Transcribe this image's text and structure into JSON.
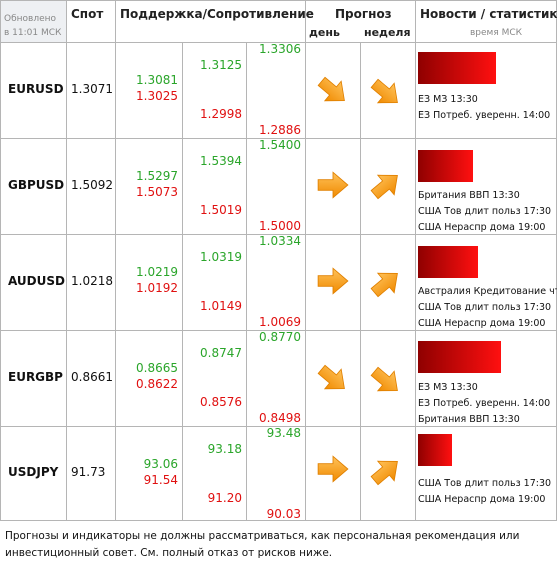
{
  "header": {
    "updated": "Обновлено в 11:01 МСК",
    "spot": "Спот",
    "levels": "Поддержка/Сопротивление",
    "forecast": "Прогноз",
    "day": "день",
    "week": "неделя",
    "news": "Новости / статистика",
    "time": "время МСК"
  },
  "rows": [
    {
      "pair": "EURUSD",
      "spot": "1.3071",
      "resistance": [
        "1.3081",
        "1.3125",
        "1.3306"
      ],
      "support": [
        "1.3025",
        "1.2998",
        "1.2886"
      ],
      "news": [
        "ЕЗ МЗ 13:30",
        "ЕЗ Потреб. уверенн. 14:00"
      ]
    },
    {
      "pair": "GBPUSD",
      "spot": "1.5092",
      "resistance": [
        "1.5297",
        "1.5394",
        "1.5400"
      ],
      "support": [
        "1.5073",
        "1.5019",
        "1.5000"
      ],
      "news": [
        "Британия ВВП 13:30",
        "США Тов длит польз 17:30",
        "США Нераспр дома 19:00"
      ]
    },
    {
      "pair": "AUDUSD",
      "spot": "1.0218",
      "resistance": [
        "1.0219",
        "1.0319",
        "1.0334"
      ],
      "support": [
        "1.0192",
        "1.0149",
        "1.0069"
      ],
      "news": [
        "Австралия Кредитование чт.",
        "США Тов длит польз 17:30",
        "США Нераспр дома 19:00"
      ]
    },
    {
      "pair": "EURGBP",
      "spot": "0.8661",
      "resistance": [
        "0.8665",
        "0.8747",
        "0.8770"
      ],
      "support": [
        "0.8622",
        "0.8576",
        "0.8498"
      ],
      "news": [
        "ЕЗ МЗ 13:30",
        "ЕЗ Потреб. уверенн. 14:00",
        "Британия ВВП 13:30"
      ]
    },
    {
      "pair": "USDJPY",
      "spot": "91.73",
      "resistance": [
        "93.06",
        "93.18",
        "93.48"
      ],
      "support": [
        "91.54",
        "91.20",
        "90.03"
      ],
      "news": [
        "США Тов длит польз 17:30",
        "США Нераспр дома 19:00"
      ]
    }
  ],
  "footer": "Прогнозы и индикаторы не должны рассматриваться, как персональная рекомендация или инвестиционный совет. См. полный отказ от рисков ниже."
}
